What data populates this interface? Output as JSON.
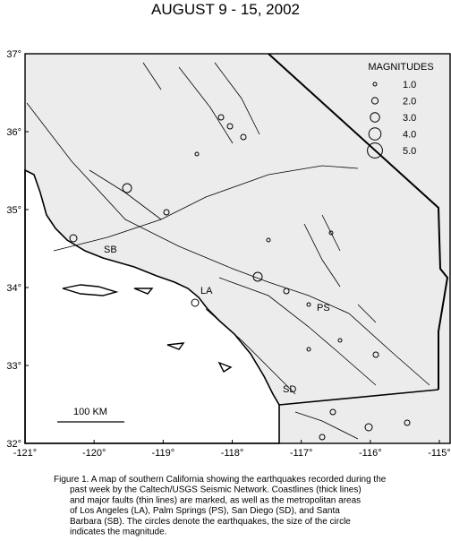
{
  "header": {
    "title": "AUGUST 9 - 15, 2002"
  },
  "map": {
    "lon_ticks": [
      {
        "value": -121,
        "label": "-121°"
      },
      {
        "value": -120,
        "label": "-120°"
      },
      {
        "value": -119,
        "label": "-119°"
      },
      {
        "value": -118,
        "label": "-118°"
      },
      {
        "value": -117,
        "label": "-117°"
      },
      {
        "value": -116,
        "label": "-116°"
      },
      {
        "value": -115,
        "label": "-115°"
      }
    ],
    "lat_ticks": [
      {
        "value": 37,
        "label": "37°"
      },
      {
        "value": 36,
        "label": "36°"
      },
      {
        "value": 35,
        "label": "35°"
      },
      {
        "value": 34,
        "label": "34°"
      },
      {
        "value": 33,
        "label": "33°"
      },
      {
        "value": 32,
        "label": "32°"
      }
    ],
    "legend": {
      "title": "MAGNITUDES",
      "items": [
        "1.0",
        "2.0",
        "3.0",
        "4.0",
        "5.0"
      ]
    },
    "places": [
      "SB",
      "LA",
      "PS",
      "SD"
    ],
    "scale_label": "100 KM"
  },
  "caption": {
    "lines": [
      "Figure 1. A map of southern California showing the earthquakes recorded during the",
      "past week by the Caltech/USGS Seismic Network.  Coastlines (thick lines)",
      "and major faults (thin lines) are marked, as well as the metropolitan areas",
      "of Los Angeles (LA), Palm Springs (PS), San Diego (SD), and Santa",
      "Barbara (SB).  The circles denote the earthquakes, the size of the circle",
      "indicates the magnitude."
    ]
  }
}
